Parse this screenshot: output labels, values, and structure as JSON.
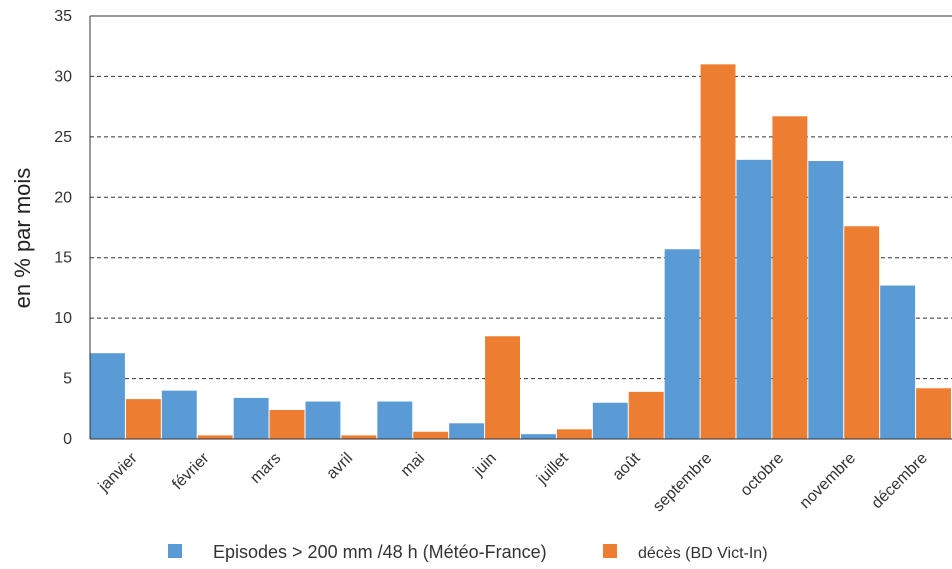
{
  "chart_data": {
    "type": "bar",
    "title": "",
    "xlabel": "",
    "ylabel": "en % par mois",
    "ylim": [
      0,
      35
    ],
    "yticks": [
      0,
      5,
      10,
      15,
      20,
      25,
      30,
      35
    ],
    "grid": "horizontal dashed",
    "legend_position": "bottom",
    "categories": [
      "janvier",
      "février",
      "mars",
      "avril",
      "mai",
      "juin",
      "juillet",
      "août",
      "septembre",
      "octobre",
      "novembre",
      "décembre"
    ],
    "series": [
      {
        "name": "Episodes > 200 mm /48 h (Météo-France)",
        "color": "#5B9BD5",
        "values": [
          7.1,
          4.0,
          3.4,
          3.1,
          3.1,
          1.3,
          0.4,
          3.0,
          15.7,
          23.1,
          23.0,
          12.7
        ]
      },
      {
        "name": "décès (BD Vict-In)",
        "color": "#ED7D31",
        "values": [
          3.3,
          0.3,
          2.4,
          0.3,
          0.6,
          8.5,
          0.8,
          3.9,
          31.0,
          26.7,
          17.6,
          4.2
        ]
      }
    ]
  }
}
